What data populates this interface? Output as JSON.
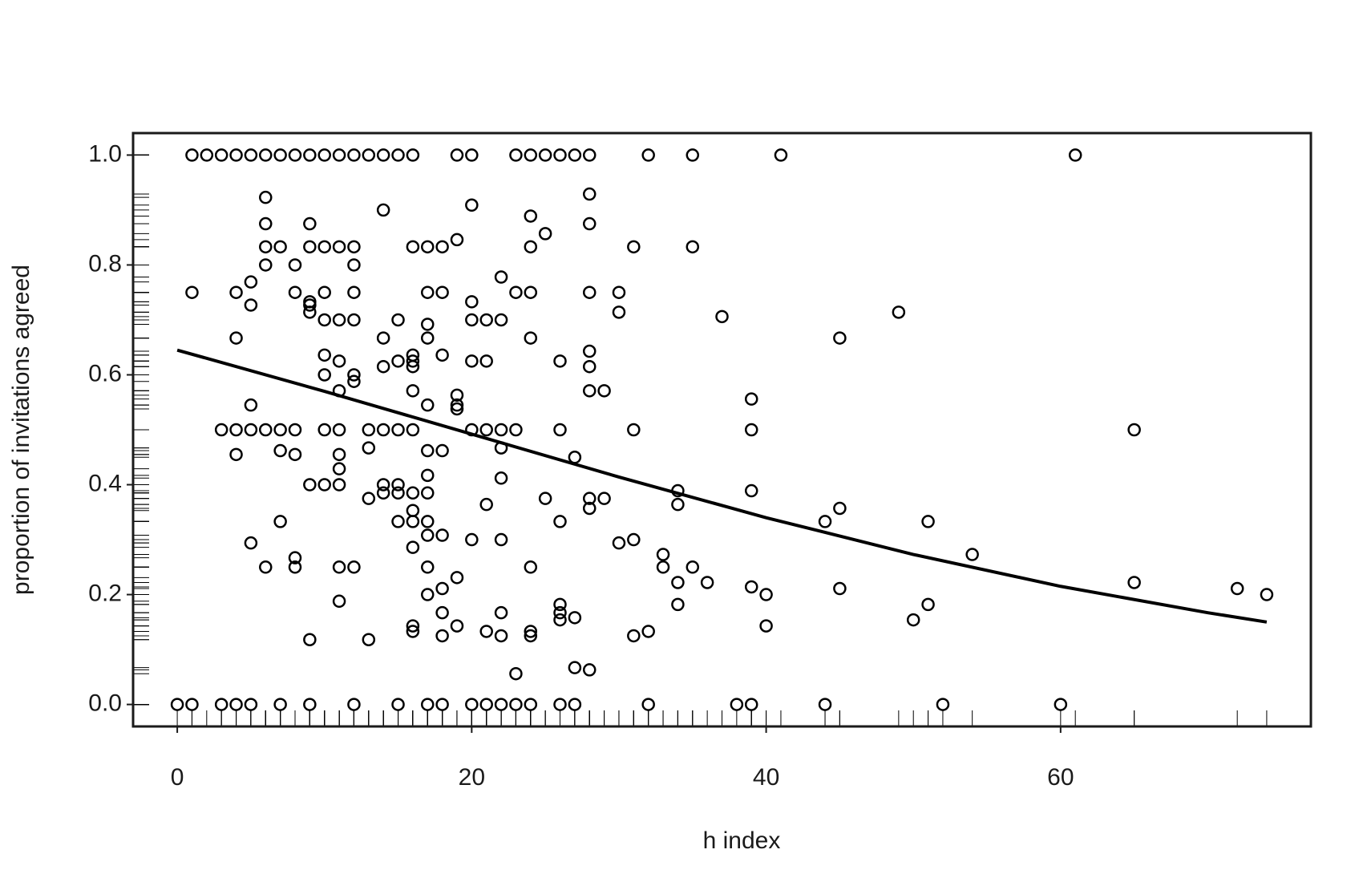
{
  "chart_data": {
    "type": "scatter",
    "xlabel": "h index",
    "ylabel": "proportion of invitations agreed",
    "xlim": [
      -3,
      77
    ],
    "ylim": [
      -0.04,
      1.04
    ],
    "xticks": [
      0,
      20,
      40,
      60
    ],
    "yticks": [
      {
        "value": 0,
        "label": "0.0"
      },
      0.2,
      0.4,
      0.6,
      0.8,
      {
        "value": 1,
        "label": "1.0"
      }
    ],
    "color": "#000000",
    "rug": true,
    "x": [
      1,
      2,
      3,
      4,
      5,
      6,
      7,
      8,
      9,
      10,
      11,
      12,
      13,
      14,
      15,
      16,
      19,
      20,
      23,
      24,
      25,
      26,
      27,
      28,
      32,
      35,
      41,
      61,
      0,
      1,
      3,
      4,
      5,
      7,
      9,
      12,
      15,
      17,
      18,
      20,
      21,
      22,
      23,
      24,
      26,
      27,
      32,
      38,
      39,
      44,
      52,
      60,
      1,
      4,
      4,
      5,
      5,
      6,
      6,
      6,
      6,
      7,
      8,
      8,
      9,
      9,
      9,
      9,
      9,
      10,
      10,
      10,
      10,
      10,
      11,
      11,
      11,
      11,
      12,
      12,
      12,
      12,
      12,
      12,
      14,
      14,
      14,
      15,
      15,
      16,
      16,
      16,
      16,
      16,
      17,
      17,
      17,
      17,
      17,
      18,
      18,
      18,
      19,
      19,
      19,
      19,
      20,
      20,
      20,
      20,
      21,
      21,
      22,
      22,
      23,
      24,
      24,
      24,
      24,
      25,
      26,
      28,
      28,
      28,
      28,
      28,
      28,
      29,
      30,
      30,
      31,
      35,
      37,
      45,
      49,
      39,
      3,
      4,
      5,
      6,
      7,
      8,
      10,
      11,
      13,
      14,
      15,
      16,
      20,
      21,
      22,
      23,
      26,
      31,
      39,
      65,
      5,
      4,
      7,
      8,
      11,
      11,
      13,
      17,
      18,
      22,
      27,
      9,
      10,
      11,
      13,
      14,
      14,
      15,
      15,
      16,
      16,
      17,
      17,
      21,
      22,
      25,
      28,
      28,
      29,
      34,
      34,
      39,
      45,
      44,
      51,
      7,
      15,
      16,
      17,
      26,
      5,
      16,
      17,
      18,
      20,
      22,
      30,
      31,
      33,
      54,
      6,
      8,
      8,
      11,
      12,
      17,
      24,
      33,
      35,
      34,
      36,
      39,
      40,
      45,
      65,
      72,
      74,
      17,
      18,
      19,
      11,
      26,
      26,
      26,
      18,
      22,
      34,
      51,
      50,
      16,
      16,
      19,
      21,
      22,
      24,
      24,
      18,
      27,
      31,
      32,
      40,
      9,
      13,
      23,
      27,
      28
    ],
    "values": [
      1,
      1,
      1,
      1,
      1,
      1,
      1,
      1,
      1,
      1,
      1,
      1,
      1,
      1,
      1,
      1,
      1,
      1,
      1,
      1,
      1,
      1,
      1,
      1,
      1,
      1,
      1,
      1,
      0,
      0,
      0,
      0,
      0,
      0,
      0,
      0,
      0,
      0,
      0,
      0,
      0,
      0,
      0,
      0,
      0,
      0,
      0,
      0,
      0,
      0,
      0,
      0,
      0.75,
      0.75,
      0.667,
      0.769,
      0.727,
      0.923,
      0.875,
      0.833,
      0.8,
      0.833,
      0.8,
      0.75,
      0.875,
      0.833,
      0.733,
      0.727,
      0.714,
      0.833,
      0.75,
      0.7,
      0.636,
      0.6,
      0.833,
      0.7,
      0.625,
      0.571,
      0.833,
      0.8,
      0.75,
      0.7,
      0.6,
      0.588,
      0.9,
      0.667,
      0.615,
      0.7,
      0.625,
      0.833,
      0.636,
      0.625,
      0.615,
      0.571,
      0.833,
      0.75,
      0.692,
      0.667,
      0.545,
      0.833,
      0.75,
      0.636,
      0.846,
      0.563,
      0.545,
      0.538,
      0.909,
      0.733,
      0.7,
      0.625,
      0.7,
      0.625,
      0.778,
      0.7,
      0.75,
      0.889,
      0.833,
      0.75,
      0.667,
      0.857,
      0.625,
      0.929,
      0.875,
      0.75,
      0.643,
      0.615,
      0.571,
      0.571,
      0.75,
      0.714,
      0.833,
      0.833,
      0.706,
      0.667,
      0.714,
      0.556,
      0.5,
      0.5,
      0.5,
      0.5,
      0.5,
      0.5,
      0.5,
      0.5,
      0.5,
      0.5,
      0.5,
      0.5,
      0.5,
      0.5,
      0.5,
      0.5,
      0.5,
      0.5,
      0.5,
      0.5,
      0.545,
      0.455,
      0.462,
      0.455,
      0.455,
      0.429,
      0.467,
      0.462,
      0.462,
      0.467,
      0.45,
      0.4,
      0.4,
      0.4,
      0.375,
      0.4,
      0.385,
      0.4,
      0.385,
      0.385,
      0.353,
      0.417,
      0.385,
      0.364,
      0.412,
      0.375,
      0.375,
      0.357,
      0.375,
      0.389,
      0.364,
      0.389,
      0.357,
      0.333,
      0.333,
      0.333,
      0.333,
      0.333,
      0.333,
      0.333,
      0.294,
      0.286,
      0.308,
      0.308,
      0.3,
      0.3,
      0.294,
      0.3,
      0.273,
      0.273,
      0.25,
      0.267,
      0.25,
      0.25,
      0.25,
      0.25,
      0.25,
      0.25,
      0.25,
      0.222,
      0.222,
      0.214,
      0.2,
      0.211,
      0.222,
      0.211,
      0.2,
      0.2,
      0.211,
      0.231,
      0.188,
      0.182,
      0.167,
      0.154,
      0.167,
      0.167,
      0.182,
      0.182,
      0.154,
      0.143,
      0.133,
      0.143,
      0.133,
      0.125,
      0.133,
      0.125,
      0.125,
      0.158,
      0.125,
      0.133,
      0.143,
      0.118,
      0.118,
      0.056,
      0.067,
      0.063
    ],
    "fit": {
      "x": [
        0,
        10,
        20,
        30,
        40,
        50,
        60,
        70,
        74
      ],
      "values": [
        0.645,
        0.57,
        0.492,
        0.414,
        0.34,
        0.273,
        0.215,
        0.167,
        0.15
      ]
    }
  }
}
